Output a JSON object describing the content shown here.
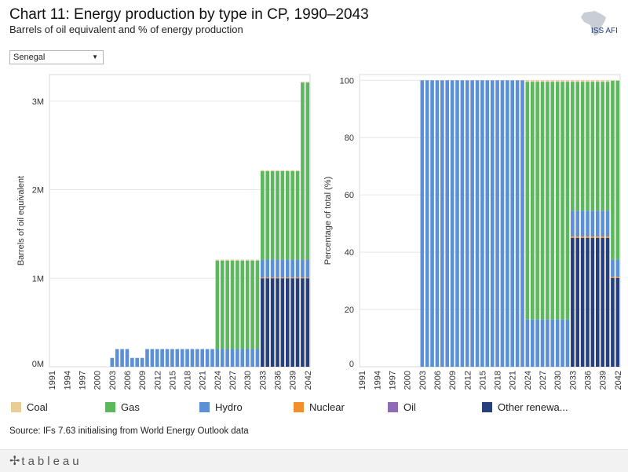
{
  "header": {
    "title": "Chart 11: Energy production by type in CP, 1990–2043",
    "subtitle": "Barrels of oil equivalent and % of energy production",
    "logo_text": "ISS AFI"
  },
  "filter": {
    "selected": "Senegal"
  },
  "legend": [
    {
      "label": "Coal",
      "color": "#E8CD95"
    },
    {
      "label": "Gas",
      "color": "#5CB85C"
    },
    {
      "label": "Hydro",
      "color": "#5B8FD6"
    },
    {
      "label": "Nuclear",
      "color": "#F28E2B"
    },
    {
      "label": "Oil",
      "color": "#8B6CB5"
    },
    {
      "label": "Other renewa...",
      "color": "#283F7D"
    }
  ],
  "source": "Source: IFs 7.63 initialising from World Energy Outlook data",
  "footer": {
    "brand": "tableau"
  },
  "chart_data": [
    {
      "type": "bar",
      "stacked": true,
      "title": "",
      "xlabel": "",
      "ylabel": "Barrels of oil equivalent",
      "ylim": [
        0,
        3300000
      ],
      "yticks": [
        0,
        1000000,
        2000000,
        3000000
      ],
      "ytick_labels": [
        "0M",
        "1M",
        "2M",
        "3M"
      ],
      "categories": [
        1991,
        1992,
        1993,
        1994,
        1995,
        1996,
        1997,
        1998,
        1999,
        2000,
        2001,
        2002,
        2003,
        2004,
        2005,
        2006,
        2007,
        2008,
        2009,
        2010,
        2011,
        2012,
        2013,
        2014,
        2015,
        2016,
        2017,
        2018,
        2019,
        2020,
        2021,
        2022,
        2023,
        2024,
        2025,
        2026,
        2027,
        2028,
        2029,
        2030,
        2031,
        2032,
        2033,
        2034,
        2035,
        2036,
        2037,
        2038,
        2039,
        2040,
        2041,
        2042
      ],
      "tick_labels": [
        "1991",
        "1994",
        "1997",
        "2000",
        "2003",
        "2006",
        "2009",
        "2012",
        "2015",
        "2018",
        "2021",
        "2024",
        "2027",
        "2030",
        "2033",
        "2036",
        "2039",
        "2042"
      ],
      "series": [
        {
          "name": "Other renewa...",
          "color": "#283F7D",
          "values": [
            0,
            0,
            0,
            0,
            0,
            0,
            0,
            0,
            0,
            0,
            0,
            0,
            0,
            0,
            0,
            0,
            0,
            0,
            0,
            0,
            0,
            0,
            0,
            0,
            0,
            0,
            0,
            0,
            0,
            0,
            0,
            0,
            0,
            0,
            0,
            0,
            0,
            0,
            0,
            0,
            0,
            0,
            1000000,
            1000000,
            1000000,
            1000000,
            1000000,
            1000000,
            1000000,
            1000000,
            1000000,
            1000000
          ]
        },
        {
          "name": "Nuclear",
          "color": "#F28E2B",
          "values": [
            0,
            0,
            0,
            0,
            0,
            0,
            0,
            0,
            0,
            0,
            0,
            0,
            0,
            0,
            0,
            0,
            0,
            0,
            0,
            0,
            0,
            0,
            0,
            0,
            0,
            0,
            0,
            0,
            0,
            0,
            0,
            0,
            0,
            0,
            0,
            0,
            0,
            0,
            0,
            0,
            0,
            0,
            10000,
            10000,
            10000,
            10000,
            10000,
            10000,
            10000,
            10000,
            10000,
            10000
          ]
        },
        {
          "name": "Hydro",
          "color": "#5B8FD6",
          "values": [
            0,
            0,
            0,
            0,
            0,
            0,
            0,
            0,
            0,
            0,
            0,
            0,
            100000,
            200000,
            200000,
            200000,
            100000,
            100000,
            100000,
            200000,
            200000,
            200000,
            200000,
            200000,
            200000,
            200000,
            200000,
            200000,
            200000,
            200000,
            200000,
            200000,
            200000,
            200000,
            200000,
            200000,
            200000,
            200000,
            200000,
            200000,
            200000,
            200000,
            200000,
            200000,
            200000,
            200000,
            200000,
            200000,
            200000,
            200000,
            200000,
            200000
          ]
        },
        {
          "name": "Gas",
          "color": "#5CB85C",
          "values": [
            0,
            0,
            0,
            0,
            0,
            0,
            0,
            0,
            0,
            0,
            0,
            0,
            0,
            0,
            0,
            0,
            0,
            0,
            0,
            0,
            0,
            0,
            0,
            0,
            0,
            0,
            0,
            0,
            0,
            0,
            0,
            0,
            0,
            1000000,
            1000000,
            1000000,
            1000000,
            1000000,
            1000000,
            1000000,
            1000000,
            1000000,
            1000000,
            1000000,
            1000000,
            1000000,
            1000000,
            1000000,
            1000000,
            1000000,
            2000000,
            2000000
          ]
        },
        {
          "name": "Coal",
          "color": "#E8CD95",
          "values": [
            0,
            0,
            0,
            0,
            0,
            0,
            0,
            0,
            0,
            0,
            0,
            0,
            0,
            0,
            0,
            0,
            0,
            0,
            0,
            0,
            0,
            0,
            0,
            0,
            0,
            0,
            0,
            0,
            0,
            0,
            0,
            0,
            0,
            10000,
            10000,
            10000,
            10000,
            10000,
            10000,
            10000,
            10000,
            10000,
            10000,
            10000,
            10000,
            10000,
            10000,
            10000,
            10000,
            10000,
            10000,
            10000
          ]
        }
      ]
    },
    {
      "type": "bar",
      "stacked": true,
      "title": "",
      "xlabel": "",
      "ylabel": "Percentage of total (%)",
      "ylim": [
        0,
        102
      ],
      "yticks": [
        0,
        20,
        40,
        60,
        80,
        100
      ],
      "ytick_labels": [
        "0",
        "20",
        "40",
        "60",
        "80",
        "100"
      ],
      "categories": [
        1991,
        1992,
        1993,
        1994,
        1995,
        1996,
        1997,
        1998,
        1999,
        2000,
        2001,
        2002,
        2003,
        2004,
        2005,
        2006,
        2007,
        2008,
        2009,
        2010,
        2011,
        2012,
        2013,
        2014,
        2015,
        2016,
        2017,
        2018,
        2019,
        2020,
        2021,
        2022,
        2023,
        2024,
        2025,
        2026,
        2027,
        2028,
        2029,
        2030,
        2031,
        2032,
        2033,
        2034,
        2035,
        2036,
        2037,
        2038,
        2039,
        2040,
        2041,
        2042
      ],
      "tick_labels": [
        "1991",
        "1994",
        "1997",
        "2000",
        "2003",
        "2006",
        "2009",
        "2012",
        "2015",
        "2018",
        "2021",
        "2024",
        "2027",
        "2030",
        "2033",
        "2036",
        "2039",
        "2042"
      ],
      "series": [
        {
          "name": "Other renewa...",
          "color": "#283F7D",
          "values": [
            0,
            0,
            0,
            0,
            0,
            0,
            0,
            0,
            0,
            0,
            0,
            0,
            0,
            0,
            0,
            0,
            0,
            0,
            0,
            0,
            0,
            0,
            0,
            0,
            0,
            0,
            0,
            0,
            0,
            0,
            0,
            0,
            0,
            0,
            0,
            0,
            0,
            0,
            0,
            0,
            0,
            0,
            45,
            45,
            45,
            45,
            45,
            45,
            45,
            45,
            31,
            31
          ]
        },
        {
          "name": "Nuclear",
          "color": "#F28E2B",
          "values": [
            0,
            0,
            0,
            0,
            0,
            0,
            0,
            0,
            0,
            0,
            0,
            0,
            0,
            0,
            0,
            0,
            0,
            0,
            0,
            0,
            0,
            0,
            0,
            0,
            0,
            0,
            0,
            0,
            0,
            0,
            0,
            0,
            0,
            0,
            0,
            0,
            0,
            0,
            0,
            0,
            0,
            0,
            0.5,
            0.5,
            0.5,
            0.5,
            0.5,
            0.5,
            0.5,
            0.5,
            0.4,
            0.4
          ]
        },
        {
          "name": "Hydro",
          "color": "#5B8FD6",
          "values": [
            0,
            0,
            0,
            0,
            0,
            0,
            0,
            0,
            0,
            0,
            0,
            0,
            100,
            100,
            100,
            100,
            100,
            100,
            100,
            100,
            100,
            100,
            100,
            100,
            100,
            100,
            100,
            100,
            100,
            100,
            100,
            100,
            100,
            16.5,
            16.5,
            16.5,
            16.5,
            16.5,
            16.5,
            16.5,
            16.5,
            16.5,
            9,
            9,
            9,
            9,
            9,
            9,
            9,
            9,
            6,
            6
          ]
        },
        {
          "name": "Gas",
          "color": "#5CB85C",
          "values": [
            0,
            0,
            0,
            0,
            0,
            0,
            0,
            0,
            0,
            0,
            0,
            0,
            0,
            0,
            0,
            0,
            0,
            0,
            0,
            0,
            0,
            0,
            0,
            0,
            0,
            0,
            0,
            0,
            0,
            0,
            0,
            0,
            0,
            83,
            83,
            83,
            83,
            83,
            83,
            83,
            83,
            83,
            45,
            45,
            45,
            45,
            45,
            45,
            45,
            45,
            62.5,
            62.5
          ]
        },
        {
          "name": "Coal",
          "color": "#E8CD95",
          "values": [
            0,
            0,
            0,
            0,
            0,
            0,
            0,
            0,
            0,
            0,
            0,
            0,
            0,
            0,
            0,
            0,
            0,
            0,
            0,
            0,
            0,
            0,
            0,
            0,
            0,
            0,
            0,
            0,
            0,
            0,
            0,
            0,
            0,
            0.5,
            0.5,
            0.5,
            0.5,
            0.5,
            0.5,
            0.5,
            0.5,
            0.5,
            0.5,
            0.5,
            0.5,
            0.5,
            0.5,
            0.5,
            0.5,
            0.5,
            0.1,
            0.1
          ]
        }
      ]
    }
  ]
}
